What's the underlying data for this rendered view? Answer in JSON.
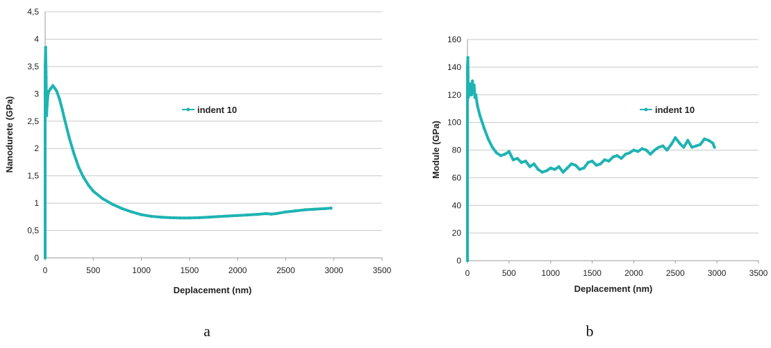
{
  "colors": {
    "series": "#1fb3b3",
    "grid": "#c8c8c8",
    "axis": "#999999"
  },
  "chart_data": [
    {
      "type": "line",
      "panel_label": "a",
      "xlabel": "Deplacement (nm)",
      "ylabel": "Nanodurete (GPa)",
      "xlim": [
        0,
        3500
      ],
      "ylim": [
        0,
        4.5
      ],
      "xticks": [
        0,
        500,
        1000,
        1500,
        2000,
        2500,
        3000,
        3500
      ],
      "xtick_labels": [
        "0",
        "500",
        "1000",
        "1500",
        "2000",
        "2500",
        "3000",
        "3500"
      ],
      "yticks": [
        0,
        0.5,
        1,
        1.5,
        2,
        2.5,
        3,
        3.5,
        4,
        4.5
      ],
      "ytick_labels": [
        "0",
        "0,5",
        "1",
        "1,5",
        "2",
        "2,5",
        "3",
        "3,5",
        "4",
        "4,5"
      ],
      "grid": true,
      "legend_position": "center-right",
      "series": [
        {
          "name": "indent 10",
          "x": [
            0,
            0,
            0,
            0,
            0,
            0,
            0,
            0,
            5,
            10,
            15,
            20,
            30,
            40,
            60,
            80,
            100,
            120,
            150,
            180,
            200,
            250,
            300,
            350,
            400,
            450,
            500,
            600,
            700,
            800,
            900,
            1000,
            1100,
            1200,
            1300,
            1400,
            1500,
            1600,
            1700,
            1800,
            1900,
            2000,
            2100,
            2200,
            2300,
            2350,
            2400,
            2500,
            2600,
            2700,
            2800,
            2900,
            2970
          ],
          "y": [
            0,
            0.5,
            1.0,
            1.5,
            2.0,
            2.5,
            3.0,
            3.5,
            3.85,
            3.3,
            2.6,
            2.8,
            3.0,
            3.05,
            3.1,
            3.15,
            3.1,
            3.05,
            2.9,
            2.7,
            2.55,
            2.2,
            1.9,
            1.65,
            1.47,
            1.33,
            1.22,
            1.08,
            0.98,
            0.9,
            0.84,
            0.79,
            0.76,
            0.745,
            0.735,
            0.73,
            0.73,
            0.735,
            0.745,
            0.755,
            0.765,
            0.775,
            0.785,
            0.795,
            0.81,
            0.8,
            0.81,
            0.84,
            0.86,
            0.88,
            0.89,
            0.9,
            0.91
          ]
        }
      ]
    },
    {
      "type": "line",
      "panel_label": "b",
      "xlabel": "Deplacement (nm)",
      "ylabel": "Module (GPa)",
      "xlim": [
        0,
        3500
      ],
      "ylim": [
        0,
        160
      ],
      "xticks": [
        0,
        500,
        1000,
        1500,
        2000,
        2500,
        3000,
        3500
      ],
      "xtick_labels": [
        "0",
        "500",
        "1000",
        "1500",
        "2000",
        "2500",
        "3000",
        "3500"
      ],
      "yticks": [
        0,
        20,
        40,
        60,
        80,
        100,
        120,
        140,
        160
      ],
      "ytick_labels": [
        "0",
        "20",
        "40",
        "60",
        "80",
        "100",
        "120",
        "140",
        "160"
      ],
      "grid": true,
      "legend_position": "center-right",
      "series": [
        {
          "name": "indent 10",
          "x": [
            0,
            0,
            0,
            0,
            0,
            0,
            0,
            0,
            5,
            10,
            20,
            30,
            40,
            50,
            60,
            70,
            80,
            90,
            100,
            120,
            150,
            200,
            250,
            300,
            350,
            400,
            450,
            500,
            550,
            600,
            650,
            700,
            750,
            800,
            850,
            900,
            950,
            1000,
            1050,
            1100,
            1150,
            1200,
            1250,
            1300,
            1350,
            1400,
            1450,
            1500,
            1550,
            1600,
            1650,
            1700,
            1750,
            1800,
            1850,
            1900,
            1950,
            2000,
            2050,
            2100,
            2150,
            2200,
            2250,
            2300,
            2350,
            2400,
            2450,
            2500,
            2550,
            2600,
            2650,
            2700,
            2750,
            2800,
            2850,
            2900,
            2950,
            2970
          ],
          "y": [
            0,
            20,
            40,
            60,
            80,
            100,
            120,
            140,
            147,
            118,
            125,
            120,
            128,
            120,
            130,
            122,
            127,
            118,
            120,
            112,
            105,
            96,
            88,
            82,
            78,
            76,
            77,
            79,
            73,
            74,
            71,
            72,
            68,
            70,
            66,
            64,
            65,
            67,
            66,
            68,
            64,
            67,
            70,
            69,
            66,
            67,
            71,
            72,
            69,
            70,
            73,
            72,
            75,
            76,
            74,
            77,
            78,
            80,
            79,
            81,
            80,
            77,
            80,
            82,
            83,
            80,
            84,
            89,
            85,
            82,
            87,
            82,
            83,
            84,
            88,
            87,
            85,
            82
          ]
        }
      ]
    }
  ]
}
